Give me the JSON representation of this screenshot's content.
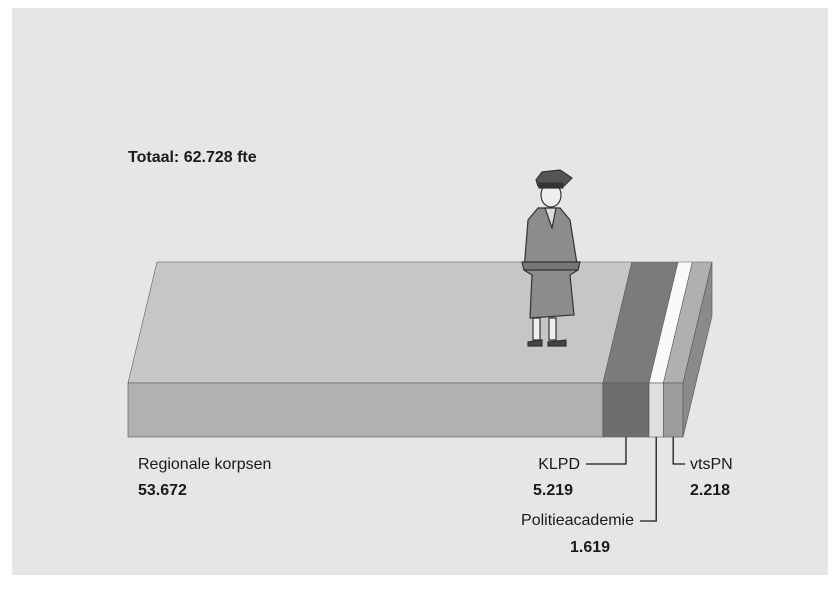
{
  "chart_data": {
    "type": "stacked-bar-3d",
    "title": "Totaal: 62.728 fte",
    "categories": [
      "Regionale korpsen",
      "KLPD",
      "Politieacademie",
      "vtsPN"
    ],
    "values": [
      53672,
      5219,
      1619,
      2218
    ],
    "value_labels": [
      "53.672",
      "5.219",
      "1.619",
      "2.218"
    ],
    "colors": [
      "#b1b1b3",
      "#6e6e70",
      "#dedfe0",
      "#9d9d9f"
    ]
  }
}
